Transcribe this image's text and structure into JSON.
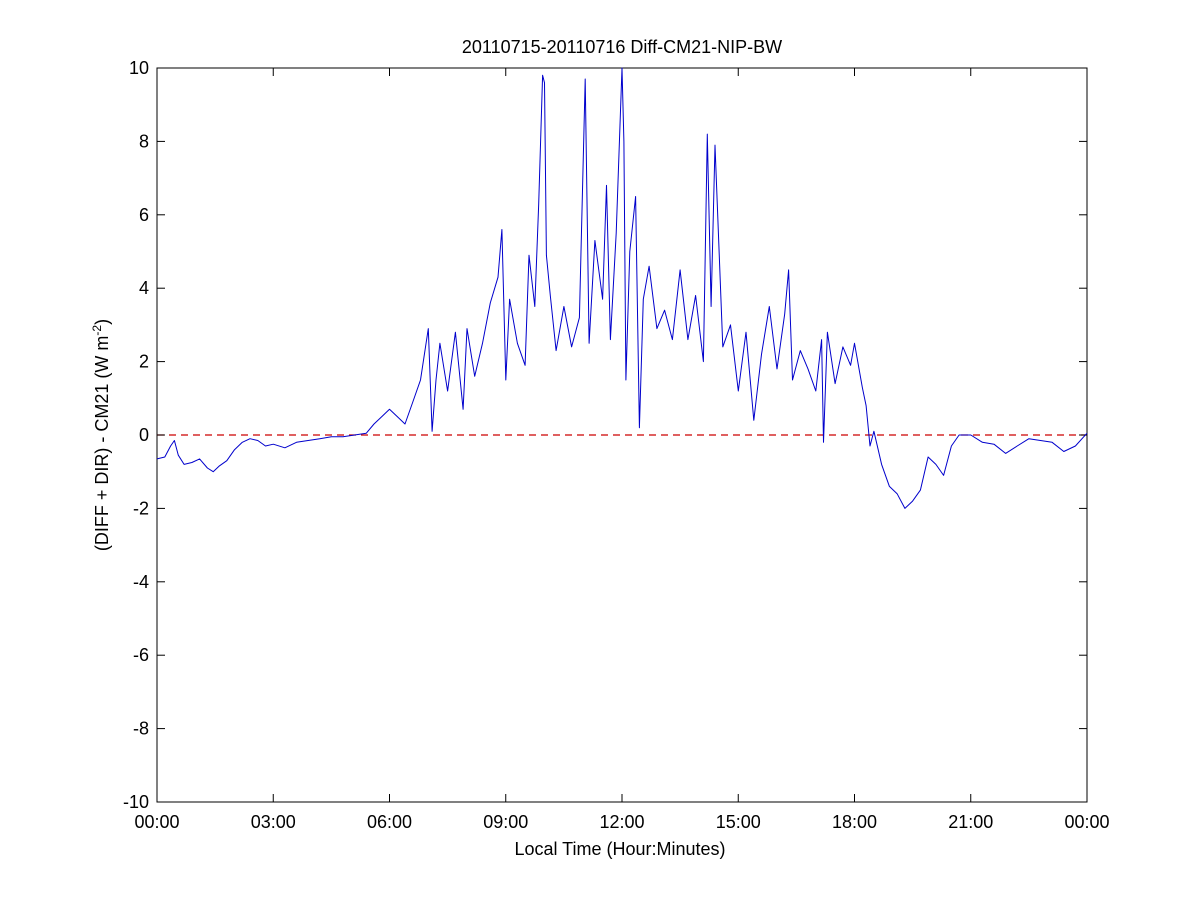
{
  "chart_data": {
    "type": "line",
    "title": "20110715-20110716 Diff-CM21-NIP-BW",
    "xlabel": "Local Time (Hour:Minutes)",
    "ylabel": "(DIFF + DIR) - CM21 (W m",
    "ylabel_superscript": "-2",
    "ylabel_suffix": ")",
    "xlim": [
      0,
      24
    ],
    "ylim": [
      -10,
      10
    ],
    "x_unit": "hours",
    "x_ticks": [
      0,
      3,
      6,
      9,
      12,
      15,
      18,
      21,
      24
    ],
    "x_tick_labels": [
      "00:00",
      "03:00",
      "06:00",
      "09:00",
      "12:00",
      "15:00",
      "18:00",
      "21:00",
      "00:00"
    ],
    "y_ticks": [
      -10,
      -8,
      -6,
      -4,
      -2,
      0,
      2,
      4,
      6,
      8,
      10
    ],
    "y_tick_labels": [
      "-10",
      "-8",
      "-6",
      "-4",
      "-2",
      "0",
      "2",
      "4",
      "6",
      "8",
      "10"
    ],
    "grid": false,
    "reference_line": {
      "y": 0,
      "style": "dashed",
      "color": "#cc0000"
    },
    "series": [
      {
        "color": "#0000cc",
        "x": [
          0.0,
          0.2,
          0.35,
          0.45,
          0.55,
          0.7,
          0.9,
          1.1,
          1.3,
          1.45,
          1.6,
          1.8,
          2.0,
          2.2,
          2.4,
          2.6,
          2.8,
          3.0,
          3.3,
          3.6,
          3.9,
          4.2,
          4.5,
          4.8,
          5.1,
          5.4,
          5.6,
          5.8,
          6.0,
          6.2,
          6.4,
          6.6,
          6.8,
          7.0,
          7.1,
          7.2,
          7.3,
          7.5,
          7.7,
          7.9,
          8.0,
          8.2,
          8.4,
          8.6,
          8.8,
          8.9,
          9.0,
          9.1,
          9.3,
          9.5,
          9.6,
          9.75,
          9.85,
          9.95,
          10.0,
          10.05,
          10.15,
          10.3,
          10.5,
          10.7,
          10.9,
          11.05,
          11.15,
          11.3,
          11.5,
          11.6,
          11.7,
          11.85,
          12.0,
          12.05,
          12.1,
          12.2,
          12.35,
          12.45,
          12.55,
          12.7,
          12.9,
          13.1,
          13.3,
          13.5,
          13.7,
          13.9,
          14.1,
          14.2,
          14.3,
          14.4,
          14.6,
          14.8,
          15.0,
          15.2,
          15.4,
          15.6,
          15.8,
          16.0,
          16.2,
          16.3,
          16.4,
          16.6,
          16.8,
          17.0,
          17.15,
          17.2,
          17.3,
          17.5,
          17.7,
          17.9,
          18.0,
          18.2,
          18.3,
          18.4,
          18.5,
          18.7,
          18.9,
          19.1,
          19.3,
          19.5,
          19.7,
          19.9,
          20.1,
          20.3,
          20.5,
          20.7,
          21.0,
          21.3,
          21.6,
          21.9,
          22.2,
          22.5,
          22.8,
          23.1,
          23.4,
          23.7,
          24.0
        ],
        "values": [
          -0.65,
          -0.6,
          -0.3,
          -0.15,
          -0.55,
          -0.8,
          -0.75,
          -0.65,
          -0.9,
          -1.0,
          -0.85,
          -0.7,
          -0.4,
          -0.2,
          -0.1,
          -0.15,
          -0.3,
          -0.25,
          -0.35,
          -0.2,
          -0.15,
          -0.1,
          -0.05,
          -0.05,
          0.0,
          0.05,
          0.3,
          0.5,
          0.7,
          0.5,
          0.3,
          0.9,
          1.5,
          2.9,
          0.1,
          1.5,
          2.5,
          1.2,
          2.8,
          0.7,
          2.9,
          1.6,
          2.5,
          3.6,
          4.3,
          5.6,
          1.5,
          3.7,
          2.5,
          1.9,
          4.9,
          3.5,
          6.3,
          9.8,
          9.6,
          4.9,
          3.8,
          2.3,
          3.5,
          2.4,
          3.2,
          9.7,
          2.5,
          5.3,
          3.7,
          6.8,
          2.6,
          5.5,
          10.0,
          8.0,
          1.5,
          5.0,
          6.5,
          0.2,
          3.7,
          4.6,
          2.9,
          3.4,
          2.6,
          4.5,
          2.6,
          3.8,
          2.0,
          8.2,
          3.5,
          7.9,
          2.4,
          3.0,
          1.2,
          2.8,
          0.4,
          2.2,
          3.5,
          1.8,
          3.3,
          4.5,
          1.5,
          2.3,
          1.8,
          1.2,
          2.6,
          -0.2,
          2.8,
          1.4,
          2.4,
          1.9,
          2.5,
          1.3,
          0.8,
          -0.3,
          0.1,
          -0.8,
          -1.4,
          -1.6,
          -2.0,
          -1.8,
          -1.5,
          -0.6,
          -0.8,
          -1.1,
          -0.3,
          0.0,
          0.0,
          -0.2,
          -0.25,
          -0.5,
          -0.3,
          -0.1,
          -0.15,
          -0.2,
          -0.45,
          -0.3,
          0.05
        ]
      }
    ]
  }
}
